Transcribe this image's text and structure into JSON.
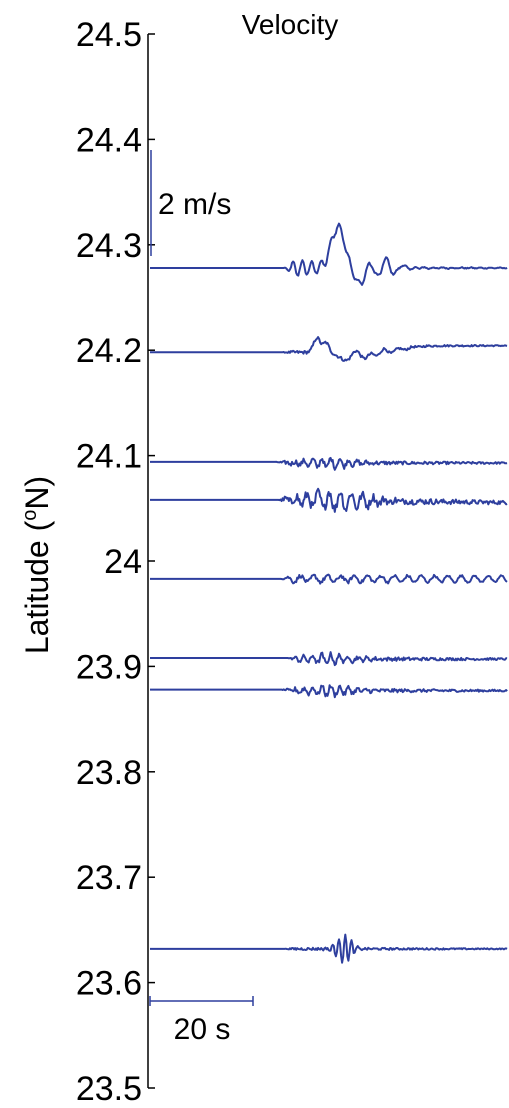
{
  "chart_data": {
    "type": "line",
    "title": "Velocity",
    "ylabel_main": "Latitude (",
    "ylabel_sup": "o",
    "ylabel_end": "N)",
    "ylim": [
      23.5,
      24.5
    ],
    "yticks": [
      24.5,
      24.4,
      24.3,
      24.2,
      24.1,
      24,
      23.9,
      23.8,
      23.7,
      23.6,
      23.5
    ],
    "ytick_labels": [
      "24.5",
      "24.4",
      "24.3",
      "24.2",
      "24.1",
      "24",
      "23.9",
      "23.8",
      "23.7",
      "23.6",
      "23.5"
    ],
    "xlim_s": [
      0,
      120
    ],
    "trace_color": "#2e3f9e",
    "scale_bars": {
      "amplitude_label": "2 m/s",
      "amplitude_ms": 2,
      "time_label": "20 s",
      "time_s": 20
    },
    "series": [
      {
        "baseline_lat": 24.278,
        "onset_s": 45,
        "style": "pulse-large"
      },
      {
        "baseline_lat": 24.198,
        "onset_s": 44,
        "style": "pulse"
      },
      {
        "baseline_lat": 24.094,
        "onset_s": 42,
        "style": "noisy"
      },
      {
        "baseline_lat": 24.058,
        "onset_s": 43,
        "style": "noisy-large"
      },
      {
        "baseline_lat": 23.983,
        "onset_s": 44,
        "style": "moderate"
      },
      {
        "baseline_lat": 23.908,
        "onset_s": 46,
        "style": "noisy"
      },
      {
        "baseline_lat": 23.878,
        "onset_s": 44,
        "style": "noisy"
      },
      {
        "baseline_lat": 23.632,
        "onset_s": 45,
        "style": "burst"
      }
    ]
  }
}
